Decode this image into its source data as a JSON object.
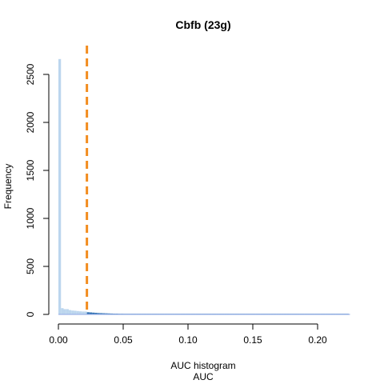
{
  "chart_data": {
    "type": "bar",
    "title": "Cbfb (23g)",
    "xlabel": "AUC histogram",
    "xlabel2": "AUC",
    "ylabel": "Frequency",
    "xlim": [
      0,
      0.225
    ],
    "ylim": [
      0,
      2700
    ],
    "x_ticks": [
      0.0,
      0.05,
      0.1,
      0.15,
      0.2
    ],
    "x_tick_labels": [
      "0.00",
      "0.05",
      "0.10",
      "0.15",
      "0.20"
    ],
    "y_ticks": [
      0,
      500,
      1000,
      1500,
      2000,
      2500
    ],
    "y_tick_labels": [
      "0",
      "500",
      "1000",
      "1500",
      "2000",
      "2500"
    ],
    "threshold": 0.022,
    "threshold_color": "#F28C1E",
    "bin_width": 0.002,
    "bins_below_threshold_color": "#BCD6EE",
    "bins_above_threshold_color": "#2166AC",
    "counts": [
      2660,
      65,
      55,
      55,
      45,
      40,
      38,
      35,
      32,
      30,
      30,
      22,
      20,
      18,
      16,
      14,
      13,
      12,
      11,
      10,
      9,
      8,
      8,
      7,
      7,
      6,
      6,
      5,
      5,
      5,
      4,
      4,
      4,
      4,
      3,
      3,
      3,
      3,
      3,
      3,
      2,
      2,
      2,
      2,
      2,
      2,
      2,
      2,
      2,
      2,
      2,
      2,
      2,
      2,
      2,
      2,
      1,
      1,
      1,
      1,
      1,
      1,
      1,
      1,
      1,
      1,
      1,
      1,
      1,
      1,
      1,
      1,
      1,
      1,
      1,
      1,
      1,
      1,
      1,
      1,
      1,
      1,
      1,
      1,
      1,
      1,
      1,
      1,
      1,
      1,
      1,
      1,
      1,
      1,
      1,
      1,
      1,
      1,
      1,
      1,
      1,
      1,
      1,
      1,
      1,
      1,
      1,
      1,
      1,
      1,
      1,
      1
    ]
  }
}
